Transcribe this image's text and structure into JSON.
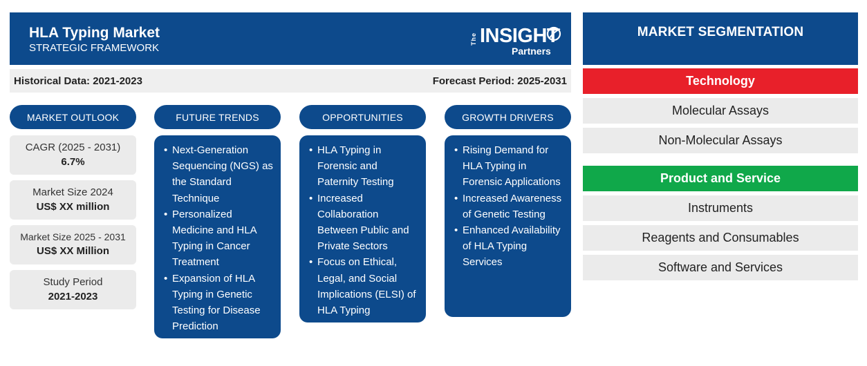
{
  "header": {
    "title": "HLA Typing Market",
    "subtitle": "STRATEGIC FRAMEWORK",
    "logo": {
      "the": "The",
      "word": "INSIGHT",
      "partners": "Partners"
    }
  },
  "period_bar": {
    "historical": "Historical Data: 2021-2023",
    "forecast": "Forecast Period: 2025-2031"
  },
  "columns": {
    "outlook": "MARKET OUTLOOK",
    "trends": "FUTURE TRENDS",
    "opportunities": "OPPORTUNITIES",
    "drivers": "GROWTH DRIVERS"
  },
  "outlook": [
    {
      "label": "CAGR (2025 - 2031)",
      "value": "6.7%"
    },
    {
      "label": "Market Size 2024",
      "value": "US$ XX million"
    },
    {
      "label": "Market Size 2025 - 2031",
      "value": "US$ XX Million"
    },
    {
      "label": "Study Period",
      "value": "2021-2023"
    }
  ],
  "trends": [
    "Next-Generation Sequencing (NGS) as the Standard Technique",
    "Personalized Medicine and HLA Typing in Cancer Treatment",
    "Expansion of HLA Typing in Genetic Testing for Disease Prediction"
  ],
  "opportunities": [
    "HLA Typing in Forensic and Paternity Testing",
    "Increased Collaboration Between Public and Private Sectors",
    "Focus on Ethical, Legal, and Social Implications (ELSI) of HLA Typing"
  ],
  "drivers": [
    "Rising Demand for HLA Typing in Forensic Applications",
    "Increased Awareness of Genetic Testing",
    "Enhanced Availability of HLA Typing Services"
  ],
  "segmentation": {
    "title": "MARKET SEGMENTATION",
    "technology": {
      "label": "Technology",
      "color": "#e8202a",
      "items": [
        "Molecular Assays",
        "Non-Molecular Assays"
      ]
    },
    "product": {
      "label": "Product and Service",
      "color": "#10a84a",
      "items": [
        "Instruments",
        "Reagents and Consumables",
        "Software and Services"
      ]
    }
  },
  "colors": {
    "brand_blue": "#0d4a8c",
    "panel_gray": "#ebebeb"
  }
}
